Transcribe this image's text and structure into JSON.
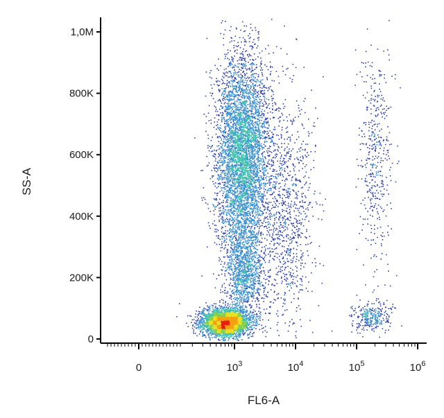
{
  "chart_data": {
    "type": "scatter",
    "style": "density dot plot (pseudocolor)",
    "xlabel": "FL6-A",
    "ylabel": "SS-A",
    "x_scale": "biexponential",
    "y_scale": "linear",
    "xlim": [
      -300,
      1000000
    ],
    "ylim": [
      0,
      1050000
    ],
    "x_ticks": [
      {
        "value": 0,
        "base": "0",
        "exp": ""
      },
      {
        "value": 1000,
        "base": "10",
        "exp": "3"
      },
      {
        "value": 10000,
        "base": "10",
        "exp": "4"
      },
      {
        "value": 100000,
        "base": "10",
        "exp": "5"
      },
      {
        "value": 1000000,
        "base": "10",
        "exp": "6"
      }
    ],
    "y_ticks": [
      {
        "value": 0,
        "label": "0"
      },
      {
        "value": 200000,
        "label": "200K"
      },
      {
        "value": 400000,
        "label": "400K"
      },
      {
        "value": 600000,
        "label": "600K"
      },
      {
        "value": 800000,
        "label": "800K"
      },
      {
        "value": 1000000,
        "label": "1,0M"
      }
    ],
    "grid": false,
    "color_scale": [
      "#2b3fae",
      "#3a8fd0",
      "#3fc0b0",
      "#7fd050",
      "#e8e020",
      "#f5a010",
      "#e82010"
    ],
    "populations": [
      {
        "x_center": 700,
        "y_center": 55000,
        "x_spread": 600,
        "y_spread": 22000,
        "events": 3500,
        "density": "high"
      },
      {
        "x_center": 1300,
        "y_center": 600000,
        "x_spread": 1400,
        "y_spread": 160000,
        "events": 5000,
        "density": "medium"
      },
      {
        "x_center": 1400,
        "y_center": 220000,
        "x_spread": 900,
        "y_spread": 80000,
        "events": 1200,
        "density": "medium"
      },
      {
        "x_center": 200000,
        "y_center": 600000,
        "x_spread": 90000,
        "y_spread": 180000,
        "events": 450,
        "density": "low"
      },
      {
        "x_center": 180000,
        "y_center": 75000,
        "x_spread": 120000,
        "y_spread": 25000,
        "events": 300,
        "density": "low"
      },
      {
        "x_center": 7000,
        "y_center": 420000,
        "x_spread": 8000,
        "y_spread": 200000,
        "events": 1000,
        "density": "low"
      }
    ]
  }
}
